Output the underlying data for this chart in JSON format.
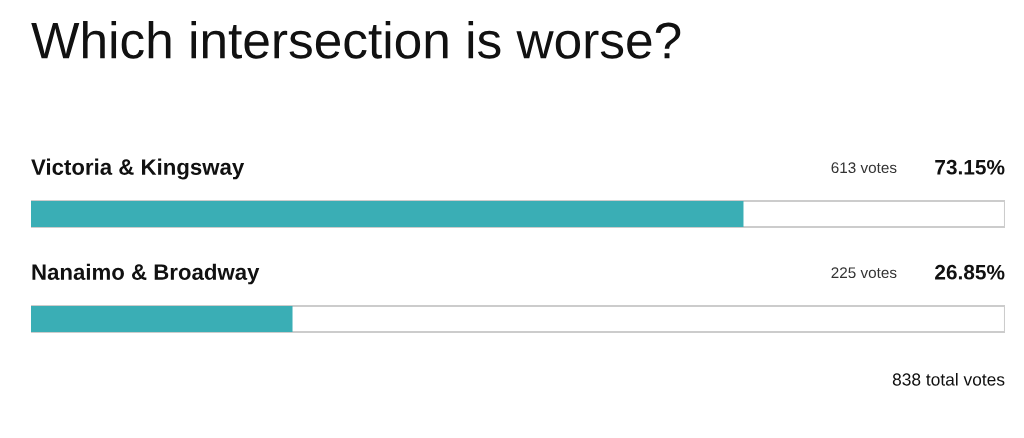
{
  "chart_data": {
    "type": "bar",
    "orientation": "horizontal",
    "title": "Which intersection is worse?",
    "categories": [
      "Victoria & Kingsway",
      "Nanaimo & Broadway"
    ],
    "values": [
      73.15,
      26.85
    ],
    "color": "#3aaeb5",
    "value_labels": [
      "73.15%",
      "26.85%"
    ],
    "xlim": [
      0,
      100
    ],
    "tick_labels": "y",
    "annotations": [
      "613 votes",
      "225 votes",
      "838 total votes"
    ]
  }
}
